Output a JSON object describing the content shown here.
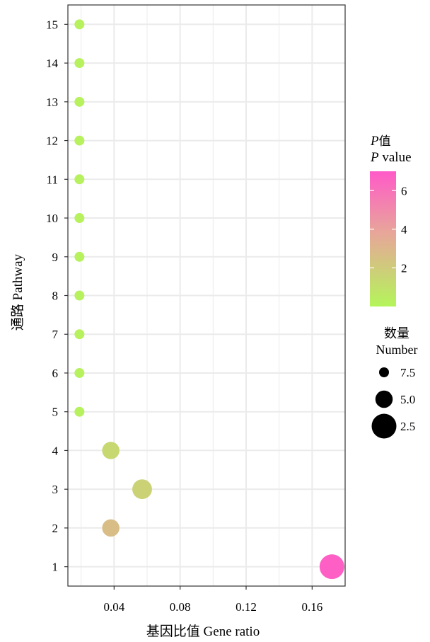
{
  "chart_data": {
    "type": "scatter",
    "xlabel": "基因比值 Gene ratio",
    "ylabel": "通路 Pathway",
    "xlim": [
      0.012,
      0.18
    ],
    "ylim": [
      0.5,
      15.5
    ],
    "x_ticks": [
      0.04,
      0.08,
      0.12,
      0.16
    ],
    "x_tick_labels": [
      "0.04",
      "0.08",
      "0.12",
      "0.16"
    ],
    "x_minor_ticks": [
      0.02,
      0.06,
      0.1,
      0.14
    ],
    "y_ticks": [
      1,
      2,
      3,
      4,
      5,
      6,
      7,
      8,
      9,
      10,
      11,
      12,
      13,
      14,
      15
    ],
    "y_tick_labels": [
      "1",
      "2",
      "3",
      "4",
      "5",
      "6",
      "7",
      "8",
      "9",
      "10",
      "11",
      "12",
      "13",
      "14",
      "15"
    ],
    "grid": true,
    "points": [
      {
        "y": 1,
        "x": 0.172,
        "p": 6.8,
        "number": 2.5
      },
      {
        "y": 2,
        "x": 0.038,
        "p": 2.7,
        "number": 5.0
      },
      {
        "y": 3,
        "x": 0.057,
        "p": 1.7,
        "number": 4.2
      },
      {
        "y": 4,
        "x": 0.038,
        "p": 1.4,
        "number": 5.0
      },
      {
        "y": 5,
        "x": 0.019,
        "p": 0.2,
        "number": 7.5
      },
      {
        "y": 6,
        "x": 0.019,
        "p": 0.2,
        "number": 7.5
      },
      {
        "y": 7,
        "x": 0.019,
        "p": 0.2,
        "number": 7.5
      },
      {
        "y": 8,
        "x": 0.019,
        "p": 0.2,
        "number": 7.5
      },
      {
        "y": 9,
        "x": 0.019,
        "p": 0.2,
        "number": 7.5
      },
      {
        "y": 10,
        "x": 0.019,
        "p": 0.2,
        "number": 7.5
      },
      {
        "y": 11,
        "x": 0.019,
        "p": 0.2,
        "number": 7.5
      },
      {
        "y": 12,
        "x": 0.019,
        "p": 0.2,
        "number": 7.5
      },
      {
        "y": 13,
        "x": 0.019,
        "p": 0.2,
        "number": 7.5
      },
      {
        "y": 14,
        "x": 0.019,
        "p": 0.2,
        "number": 7.5
      },
      {
        "y": 15,
        "x": 0.019,
        "p": 0.2,
        "number": 7.5
      }
    ],
    "color_legend": {
      "title_line1_italic": "P",
      "title_line1_rest": "值",
      "title_line2_italic": "P",
      "title_line2_rest": " value",
      "range": [
        0,
        7
      ],
      "ticks": [
        2,
        4,
        6
      ],
      "tick_labels": [
        "2",
        "4",
        "6"
      ],
      "low_color": "#b4f55a",
      "mid_color": "#e8a59a",
      "high_color": "#ff5ac8"
    },
    "size_legend": {
      "title_line1": "数量",
      "title_line2": "Number",
      "entries": [
        {
          "label": "7.5",
          "value": 7.5
        },
        {
          "label": "5.0",
          "value": 5.0
        },
        {
          "label": "2.5",
          "value": 2.5
        }
      ]
    },
    "legend_position": "right",
    "colors": {
      "grid": "#ebebeb",
      "frame": "#333333",
      "text": "#000000"
    }
  }
}
